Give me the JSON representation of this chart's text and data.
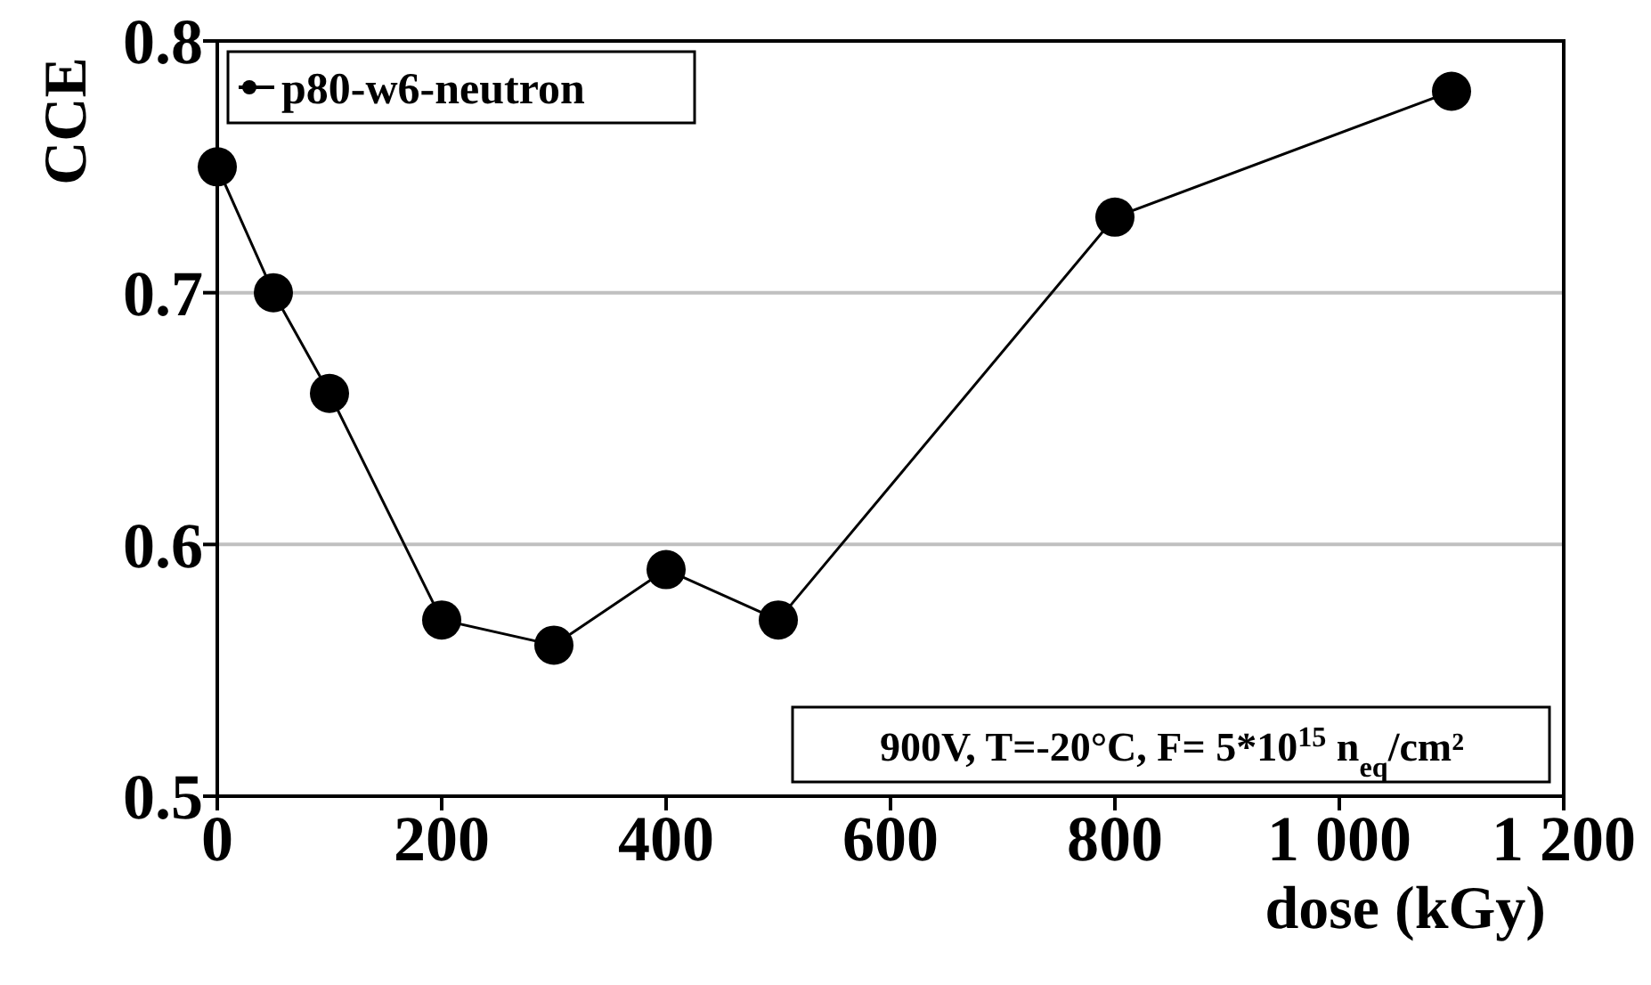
{
  "chart_data": {
    "type": "line",
    "ylabel": "CCE",
    "xlabel": "dose (kGy)",
    "x": [
      0,
      50,
      100,
      200,
      300,
      400,
      500,
      800,
      1100
    ],
    "series": [
      {
        "name": "p80-w6-neutron",
        "color": "#000000",
        "values": [
          0.75,
          0.7,
          0.66,
          0.57,
          0.56,
          0.59,
          0.57,
          0.73,
          0.78
        ]
      }
    ],
    "xlim": [
      0,
      1200
    ],
    "xticks": [
      0,
      200,
      400,
      600,
      800,
      {
        "value": 1000,
        "label": "1 000"
      },
      {
        "value": 1200,
        "label": "1 200"
      }
    ],
    "ylim": [
      0.5,
      0.8
    ],
    "yticks": [
      0.5,
      0.6,
      0.7,
      0.8
    ],
    "grid": "y",
    "legend": "top left",
    "marker": "circle",
    "line_style": "solid",
    "annotations": [
      "900V, T=-20°C, F= 5*10$^{15}$ n$_{eq}$/cm²"
    ]
  }
}
